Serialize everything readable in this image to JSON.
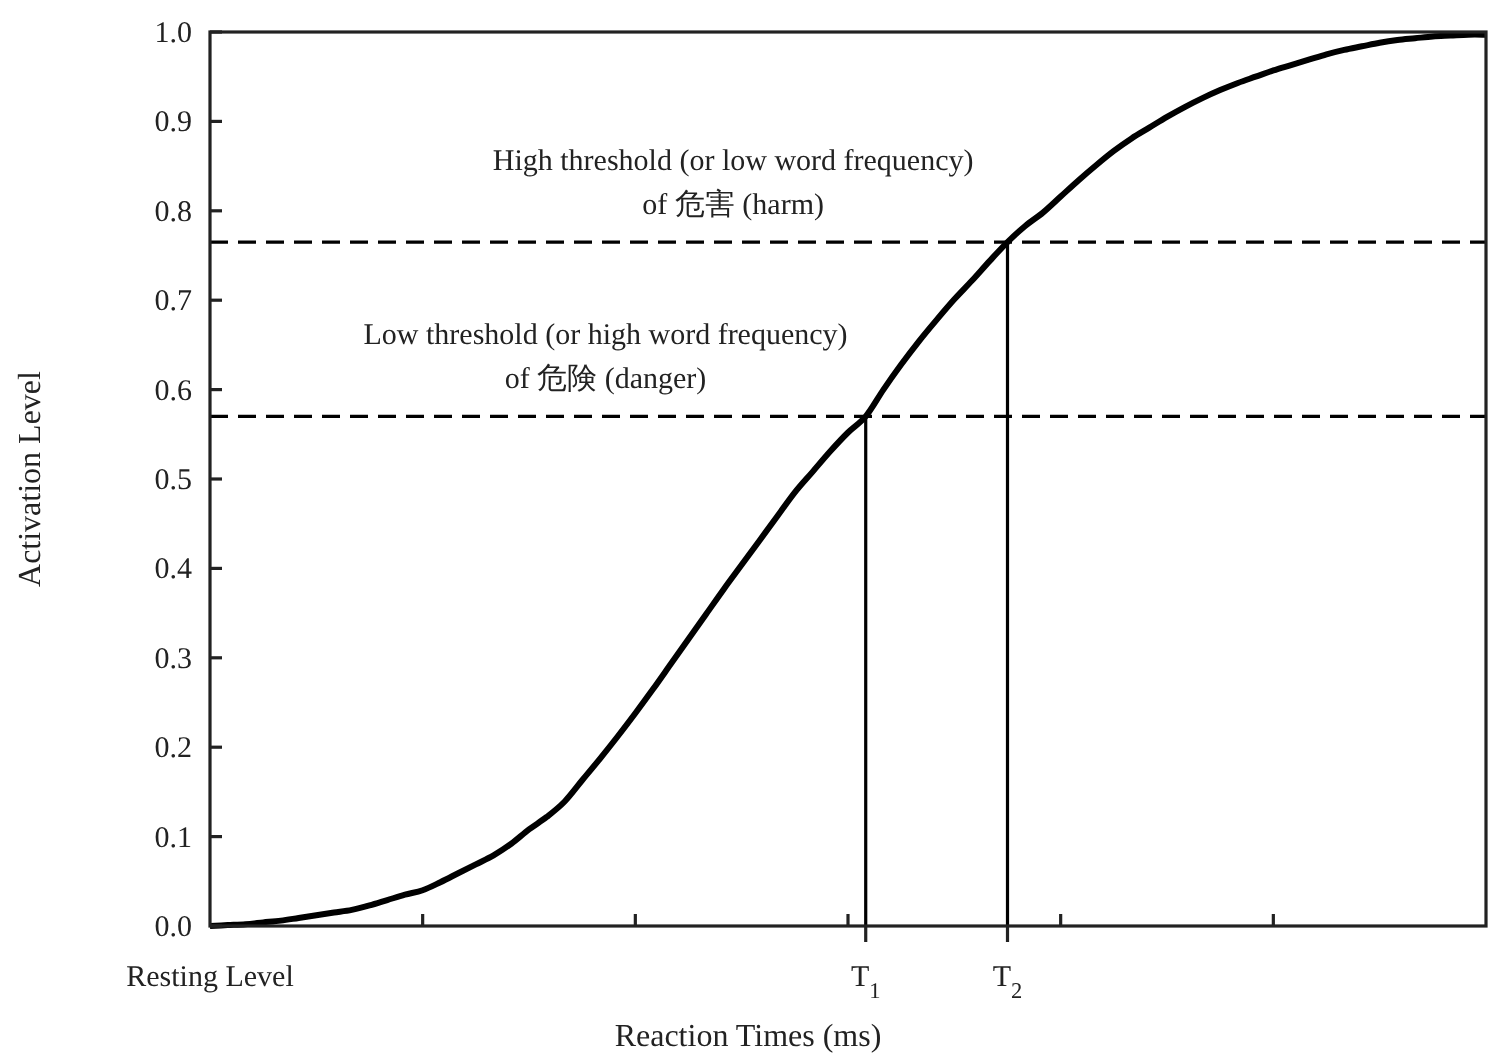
{
  "chart_data": {
    "type": "line",
    "xlabel": "Reaction Times (ms)",
    "ylabel": "Activation Level",
    "ylim": [
      0,
      1
    ],
    "categories": [
      "Resting Level",
      null,
      null,
      null,
      null,
      null,
      null,
      null,
      null,
      null,
      null,
      null,
      null,
      null,
      null,
      null,
      null,
      null,
      null,
      null,
      null,
      null,
      null,
      null,
      null,
      null,
      null,
      null,
      null,
      null,
      null,
      null,
      null,
      null,
      null,
      null,
      null,
      "T$_{1}$",
      null,
      null,
      null,
      null,
      null,
      null,
      null,
      "T$_{2}$",
      null,
      null,
      null,
      null,
      null,
      null,
      null,
      null,
      null,
      null,
      null,
      null,
      null,
      null,
      null,
      null,
      null,
      null,
      null,
      null,
      null,
      null,
      null,
      null,
      null,
      null,
      null
    ],
    "yticks": [
      {
        "value": 0,
        "label": "0.0"
      },
      {
        "value": 0.1,
        "label": "0.1"
      },
      {
        "value": 0.2,
        "label": "0.2"
      },
      {
        "value": 0.3,
        "label": "0.3"
      },
      {
        "value": 0.4,
        "label": "0.4"
      },
      {
        "value": 0.5,
        "label": "0.5"
      },
      {
        "value": 0.6,
        "label": "0.6"
      },
      {
        "value": 0.7,
        "label": "0.7"
      },
      {
        "value": 0.8,
        "label": "0.8"
      },
      {
        "value": 0.9,
        "label": "0.9"
      },
      {
        "value": 1,
        "label": "1.0"
      }
    ],
    "series": [
      {
        "color": "#000000",
        "values": [
          0,
          0.001,
          0.002,
          0.004,
          0.006,
          0.009,
          0.012,
          0.015,
          0.018,
          0.023,
          0.029,
          0.035,
          0.04,
          0.049,
          0.059,
          0.069,
          0.079,
          0.092,
          0.108,
          0.122,
          0.139,
          0.163,
          0.187,
          0.212,
          0.238,
          0.265,
          0.293,
          0.321,
          0.349,
          0.377,
          0.404,
          0.431,
          0.458,
          0.485,
          0.508,
          0.531,
          0.552,
          0.57,
          0.6,
          0.628,
          0.654,
          0.678,
          0.701,
          0.722,
          0.744,
          0.765,
          0.783,
          0.798,
          0.816,
          0.834,
          0.851,
          0.867,
          0.881,
          0.893,
          0.905,
          0.916,
          0.926,
          0.935,
          0.943,
          0.95,
          0.957,
          0.963,
          0.969,
          0.975,
          0.98,
          0.984,
          0.988,
          0.991,
          0.993,
          0.995,
          0.996,
          0.997,
          0.997
        ]
      },
      {
        "type": "bar",
        "color": "#000000",
        "values": [
          null,
          null,
          null,
          null,
          null,
          null,
          null,
          null,
          null,
          null,
          null,
          null,
          null,
          null,
          null,
          null,
          null,
          null,
          null,
          null,
          null,
          null,
          null,
          null,
          null,
          null,
          null,
          null,
          null,
          null,
          null,
          null,
          null,
          null,
          null,
          null,
          null,
          0.57,
          null,
          null,
          null,
          null,
          null,
          null,
          null,
          0.765,
          null,
          null,
          null,
          null,
          null,
          null,
          null,
          null,
          null,
          null,
          null,
          null,
          null,
          null,
          null,
          null,
          null,
          null,
          null,
          null,
          null,
          null,
          null,
          null,
          null,
          null,
          null
        ]
      }
    ],
    "ref_lines": [
      {
        "axis": "y",
        "value": 0.57,
        "label": "Low threshold (or high word frequency)\nof 危険 (danger)",
        "color": "#000000",
        "line_style": "dashed"
      },
      {
        "axis": "y",
        "value": 0.765,
        "label": "High threshold (or low word frequency)\nof 危害 (harm)",
        "color": "#000000",
        "line_style": "dashed"
      }
    ],
    "grid": false,
    "line_style": "solid",
    "marker": "none"
  }
}
